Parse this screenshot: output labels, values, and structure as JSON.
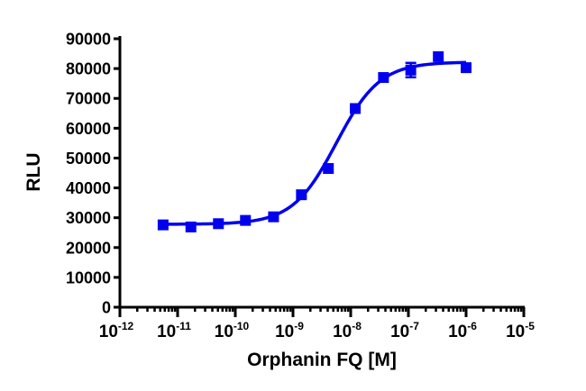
{
  "chart_data": {
    "type": "scatter",
    "title": "",
    "xlabel": "Orphanin FQ [M]",
    "ylabel": "RLU",
    "xscale": "log",
    "xlim_log10": [
      -12,
      -5
    ],
    "ylim": [
      0,
      90000
    ],
    "grid": false,
    "color": "#0000ee",
    "x_ticks": [
      {
        "base": "10",
        "exp": "-12",
        "log": -12
      },
      {
        "base": "10",
        "exp": "-11",
        "log": -11
      },
      {
        "base": "10",
        "exp": "-10",
        "log": -10
      },
      {
        "base": "10",
        "exp": "-9",
        "log": -9
      },
      {
        "base": "10",
        "exp": "-8",
        "log": -8
      },
      {
        "base": "10",
        "exp": "-7",
        "log": -7
      },
      {
        "base": "10",
        "exp": "-6",
        "log": -6
      },
      {
        "base": "10",
        "exp": "-5",
        "log": -5
      }
    ],
    "y_ticks": [
      "0",
      "10000",
      "20000",
      "30000",
      "40000",
      "50000",
      "60000",
      "70000",
      "80000",
      "90000"
    ],
    "series": [
      {
        "name": "Orphanin FQ",
        "x": [
          5.6e-12,
          1.7e-11,
          5.1e-11,
          1.5e-10,
          4.6e-10,
          1.4e-09,
          4.1e-09,
          1.2e-08,
          3.7e-08,
          1.1e-07,
          3.3e-07,
          1e-06
        ],
        "y": [
          27600,
          26900,
          28000,
          29100,
          30300,
          37700,
          46500,
          66600,
          77000,
          79500,
          84000,
          80300
        ],
        "err": [
          500,
          500,
          500,
          500,
          500,
          800,
          800,
          800,
          800,
          2400,
          800,
          500
        ]
      }
    ],
    "fit": {
      "model": "4PL",
      "bottom": 27800,
      "top": 82200,
      "log_ec50": -8.25,
      "hill": 1.15
    }
  }
}
